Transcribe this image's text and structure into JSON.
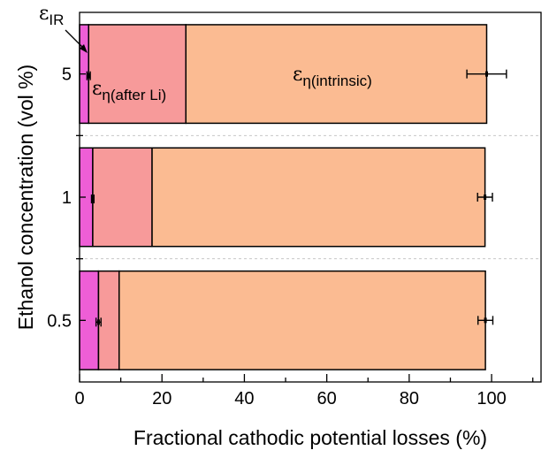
{
  "chart_data": {
    "type": "bar",
    "orientation": "horizontal",
    "stacked": true,
    "categories": [
      "5",
      "1",
      "0.5"
    ],
    "series": [
      {
        "label": "IR",
        "color": "#ee5ed6",
        "values": [
          2.2,
          3.2,
          4.6
        ]
      },
      {
        "label": "η(after Li)",
        "color": "#f79a9a",
        "values": [
          23.6,
          14.4,
          5.0
        ]
      },
      {
        "label": "η(intrinsic)",
        "color": "#fbbb92",
        "values": [
          73.0,
          80.8,
          88.9
        ]
      }
    ],
    "error_bars": [
      {
        "category": "5",
        "segment": "IR",
        "center": 2.2,
        "error": 0.4
      },
      {
        "category": "5",
        "segment": "total",
        "center": 98.8,
        "error": 4.8
      },
      {
        "category": "1",
        "segment": "IR",
        "center": 3.2,
        "error": 0.3
      },
      {
        "category": "1",
        "segment": "total",
        "center": 98.4,
        "error": 1.8
      },
      {
        "category": "0.5",
        "segment": "IR",
        "center": 4.6,
        "error": 0.6
      },
      {
        "category": "0.5",
        "segment": "total",
        "center": 98.5,
        "error": 1.8
      }
    ],
    "xlabel": "Fractional cathodic potential losses (%)",
    "ylabel": "Ethanol concentration (vol %)",
    "xlim": [
      0,
      112
    ],
    "xticks": [
      "0",
      "20",
      "40",
      "60",
      "80",
      "100"
    ],
    "xtick_values": [
      0,
      20,
      40,
      60,
      80,
      100
    ],
    "annotations": {
      "ir_symbol": "ε",
      "ir_sub": "IR",
      "after_li_symbol": "ε",
      "after_li_sub": "η(after Li)",
      "intrinsic_symbol": "ε",
      "intrinsic_sub": "η(intrinsic)"
    },
    "grid": false
  }
}
